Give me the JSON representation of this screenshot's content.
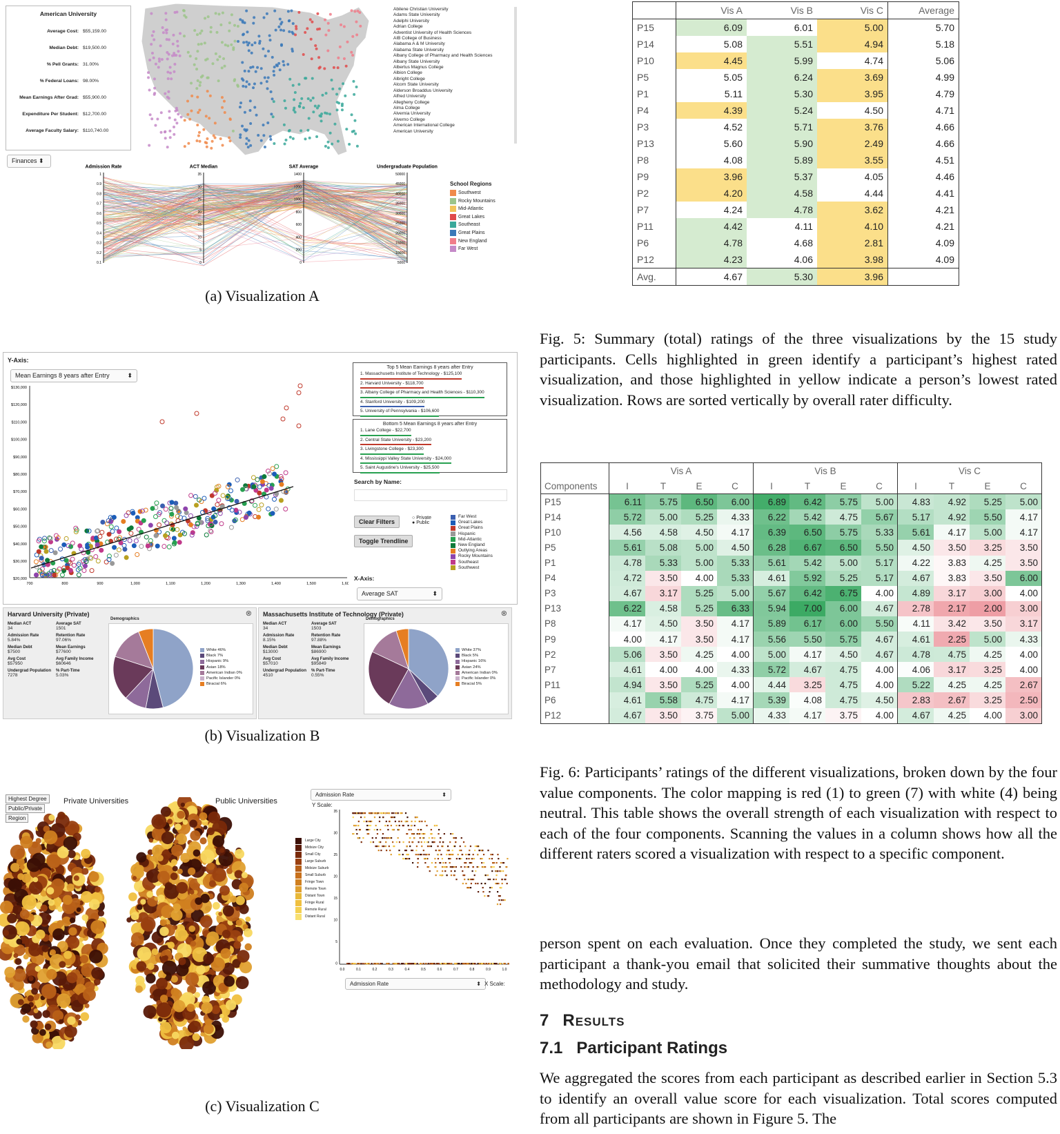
{
  "vis_a": {
    "caption": "(a) Visualization A",
    "info_title": "American University",
    "info_rows": [
      {
        "label": "Average Cost:",
        "value": "$55,159.00"
      },
      {
        "label": "Median Debt:",
        "value": "$19,500.00"
      },
      {
        "label": "% Pell Grants:",
        "value": "31.00%"
      },
      {
        "label": "% Federal Loans:",
        "value": "98.00%"
      },
      {
        "label": "Mean Earnings After Grad:",
        "value": "$55,900.00"
      },
      {
        "label": "Expenditure Per Student:",
        "value": "$12,700.00"
      },
      {
        "label": "Average Faculty Salary:",
        "value": "$110,740.00"
      }
    ],
    "dropdown": "Finances",
    "school_list": [
      "Abilene Christian University",
      "Adams State University",
      "Adelphi University",
      "Adrian College",
      "Adventist University of Health Sciences",
      "AIB College of Business",
      "Alabama A & M University",
      "Alabama State University",
      "Albany College of Pharmacy and Health Sciences",
      "Albany State University",
      "Albertus Magnus College",
      "Albion College",
      "Albright College",
      "Alcorn State University",
      "Alderson Broaddus University",
      "Alfred University",
      "Allegheny College",
      "Alma College",
      "Alvernia University",
      "Alverno College",
      "American International College",
      "American University"
    ],
    "axes": [
      "Admission Rate",
      "ACT Median",
      "SAT Average",
      "Undergraduate Population"
    ],
    "axis_ticks": [
      [
        "1",
        "0.9",
        "0.8",
        "0.7",
        "0.6",
        "0.5",
        "0.4",
        "0.3",
        "0.2",
        "0.1"
      ],
      [
        "35",
        "30",
        "25",
        "20",
        "15",
        "10",
        "5",
        "0"
      ],
      [
        "1400",
        "1200",
        "1000",
        "800",
        "600",
        "400",
        "200",
        "0"
      ],
      [
        "50000",
        "45000",
        "40000",
        "35000",
        "30000",
        "25000",
        "20000",
        "15000",
        "10000",
        "5000"
      ]
    ],
    "legend_title": "School Regions",
    "regions": [
      {
        "name": "Southwest",
        "color": "#f08a4b"
      },
      {
        "name": "Rocky Mountains",
        "color": "#9cc48a"
      },
      {
        "name": "Mid-Atlantic",
        "color": "#f2c45a"
      },
      {
        "name": "Great Lakes",
        "color": "#e04a4a"
      },
      {
        "name": "Southeast",
        "color": "#3aa89a"
      },
      {
        "name": "Great Plains",
        "color": "#3a78b8"
      },
      {
        "name": "New England",
        "color": "#f07d8a"
      },
      {
        "name": "Far West",
        "color": "#c58ac8"
      }
    ]
  },
  "vis_b": {
    "caption": "(b) Visualization B",
    "y_axis_label": "Y-Axis:",
    "y_select": "Mean Earnings 8 years after Entry",
    "y_ticks": [
      "$130,000",
      "$120,000",
      "$110,000",
      "$100,000",
      "$90,000",
      "$80,000",
      "$70,000",
      "$60,000",
      "$50,000",
      "$40,000",
      "$30,000",
      "$20,000"
    ],
    "x_ticks": [
      "700",
      "800",
      "900",
      "1,000",
      "1,100",
      "1,200",
      "1,300",
      "1,400",
      "1,500",
      "1,600"
    ],
    "top5_title": "Top 5 Mean Earnings 8 years after Entry",
    "top5": [
      "1. Massachusetts Institute of Technology - $125,100",
      "2. Harvard University - $118,700",
      "3. Albany College of Pharmacy and Health Sciences - $110,300",
      "4. Stanford University - $109,200",
      "5. University of Pennsylvania - $106,600"
    ],
    "bottom5_title": "Bottom 5 Mean Earnings 8 years after Entry",
    "bottom5": [
      "1. Lane College - $22,700",
      "2. Central State University - $23,200",
      "3. Livingstone College - $23,300",
      "4. Mississippi Valley State University - $24,000",
      "5. Saint Augustine's University - $25,500"
    ],
    "search_label": "Search by Name:",
    "clear_filters": "Clear Filters",
    "toggle_trendline": "Toggle Trendline",
    "private_label": "Private",
    "public_label": "Public",
    "x_axis_label": "X-Axis:",
    "x_select": "Average SAT",
    "regions": [
      {
        "name": "Far West",
        "color": "#3a5fb0"
      },
      {
        "name": "Great Lakes",
        "color": "#1c5db8"
      },
      {
        "name": "Great Plains",
        "color": "#c0392b"
      },
      {
        "name": "Hispanic",
        "color": "#999"
      },
      {
        "name": "Mid-Atlantic",
        "color": "#27a050"
      },
      {
        "name": "New England",
        "color": "#0e7a3a"
      },
      {
        "name": "Outlying Areas",
        "color": "#e67e22"
      },
      {
        "name": "Rocky Mountains",
        "color": "#8e44ad"
      },
      {
        "name": "Southeast",
        "color": "#c03a8a"
      },
      {
        "name": "Southwest",
        "color": "#b8a020"
      }
    ],
    "cards": [
      {
        "title": "Harvard University (Private)",
        "stats": [
          [
            "Median ACT",
            "34"
          ],
          [
            "Average SAT",
            "1501"
          ],
          [
            "Admission Rate",
            "5.84%"
          ],
          [
            "Retention Rate",
            "97.06%"
          ],
          [
            "Median Debt",
            "$7500"
          ],
          [
            "Mean Earnings",
            "$77600"
          ],
          [
            "Avg Cost",
            "$57950"
          ],
          [
            "Avg Family Income",
            "$60646"
          ],
          [
            "Undergrad Population",
            "7278"
          ],
          [
            "% Part-Time",
            "5.03%"
          ]
        ],
        "demo_label": "Demographics",
        "legend": [
          "White 46%",
          "Black 7%",
          "Hispanic 9%",
          "Asian 18%",
          "American Indian 0%",
          "Pacific Islander 0%",
          "Biracial 6%"
        ]
      },
      {
        "title": "Massachusetts Institute of Technology (Private)",
        "stats": [
          [
            "Median ACT",
            "34"
          ],
          [
            "Average SAT",
            "1503"
          ],
          [
            "Admission Rate",
            "8.15%"
          ],
          [
            "Retention Rate",
            "97.88%"
          ],
          [
            "Median Debt",
            "$13000"
          ],
          [
            "Mean Earnings",
            "$86900"
          ],
          [
            "Avg Cost",
            "$57010"
          ],
          [
            "Avg Family Income",
            "$95849"
          ],
          [
            "Undergrad Population",
            "4510"
          ],
          [
            "% Part-Time",
            "0.55%"
          ]
        ],
        "demo_label": "Demographics",
        "legend": [
          "White 37%",
          "Black 5%",
          "Hispanic 16%",
          "Asian 24%",
          "American Indian 0%",
          "Pacific Islander 0%",
          "Biracial 5%"
        ]
      }
    ]
  },
  "vis_c": {
    "caption": "(c) Visualization C",
    "buttons": [
      "Highest Degree",
      "Public/Private",
      "Region"
    ],
    "private_title": "Private Universities",
    "public_title": "Public Universities",
    "y_select": "Admission Rate",
    "y_scale": "Y Scale:",
    "x_select": "Admission Rate",
    "x_scale": "X Scale:",
    "legend": [
      "Large City",
      "Midsize City",
      "Small City",
      "Large Suburb",
      "Midsize Suburb",
      "Small Suburb",
      "Fringe Town",
      "Remote Town",
      "Distant Town",
      "Fringe Rural",
      "Remote Rural",
      "Distant Rural"
    ],
    "y_ticks": [
      "35",
      "30",
      "25",
      "20",
      "15",
      "10",
      "5",
      "0"
    ],
    "x_ticks": [
      "0.0",
      "0.1",
      "0.2",
      "0.3",
      "0.4",
      "0.5",
      "0.6",
      "0.7",
      "0.8",
      "0.9",
      "1.0"
    ]
  },
  "fig5": {
    "headers": [
      "",
      "Vis A",
      "Vis B",
      "Vis C",
      "Average"
    ],
    "rows": [
      {
        "p": "P15",
        "a": "6.09",
        "b": "6.01",
        "c": "5.00",
        "avg": "5.70",
        "hi": "a",
        "lo": "c"
      },
      {
        "p": "P14",
        "a": "5.08",
        "b": "5.51",
        "c": "4.94",
        "avg": "5.18",
        "hi": "b",
        "lo": "c"
      },
      {
        "p": "P10",
        "a": "4.45",
        "b": "5.99",
        "c": "4.74",
        "avg": "5.06",
        "hi": "b",
        "lo": "a"
      },
      {
        "p": "P5",
        "a": "5.05",
        "b": "6.24",
        "c": "3.69",
        "avg": "4.99",
        "hi": "b",
        "lo": "c"
      },
      {
        "p": "P1",
        "a": "5.11",
        "b": "5.30",
        "c": "3.95",
        "avg": "4.79",
        "hi": "b",
        "lo": "c"
      },
      {
        "p": "P4",
        "a": "4.39",
        "b": "5.24",
        "c": "4.50",
        "avg": "4.71",
        "hi": "b",
        "lo": "a"
      },
      {
        "p": "P3",
        "a": "4.52",
        "b": "5.71",
        "c": "3.76",
        "avg": "4.66",
        "hi": "b",
        "lo": "c"
      },
      {
        "p": "P13",
        "a": "5.60",
        "b": "5.90",
        "c": "2.49",
        "avg": "4.66",
        "hi": "b",
        "lo": "c"
      },
      {
        "p": "P8",
        "a": "4.08",
        "b": "5.89",
        "c": "3.55",
        "avg": "4.51",
        "hi": "b",
        "lo": "c"
      },
      {
        "p": "P9",
        "a": "3.96",
        "b": "5.37",
        "c": "4.05",
        "avg": "4.46",
        "hi": "b",
        "lo": "a"
      },
      {
        "p": "P2",
        "a": "4.20",
        "b": "4.58",
        "c": "4.44",
        "avg": "4.41",
        "hi": "b",
        "lo": "a"
      },
      {
        "p": "P7",
        "a": "4.24",
        "b": "4.78",
        "c": "3.62",
        "avg": "4.21",
        "hi": "b",
        "lo": "c"
      },
      {
        "p": "P11",
        "a": "4.42",
        "b": "4.11",
        "c": "4.10",
        "avg": "4.21",
        "hi": "a",
        "lo": "c"
      },
      {
        "p": "P6",
        "a": "4.78",
        "b": "4.68",
        "c": "2.81",
        "avg": "4.09",
        "hi": "a",
        "lo": "c"
      },
      {
        "p": "P12",
        "a": "4.23",
        "b": "4.06",
        "c": "3.98",
        "avg": "4.09",
        "hi": "a",
        "lo": "c"
      }
    ],
    "avg_row": {
      "p": "Avg.",
      "a": "4.67",
      "b": "5.30",
      "c": "3.96",
      "hi": "b",
      "lo": "c"
    },
    "caption": "Fig. 5: Summary (total) ratings of the three visualizations by the 15 study participants. Cells highlighted in green identify a participant’s highest rated visualization, and those highlighted in yellow indicate a person’s lowest rated visualization. Rows are sorted vertically by overall rater difficulty."
  },
  "fig6": {
    "group_headers": [
      "Vis A",
      "Vis B",
      "Vis C"
    ],
    "first_col": "Components",
    "sub_headers": [
      "I",
      "T",
      "E",
      "C",
      "I",
      "T",
      "E",
      "C",
      "I",
      "T",
      "E",
      "C"
    ],
    "rows": [
      {
        "p": "P15",
        "v": [
          "6.11",
          "5.75",
          "6.50",
          "6.00",
          "6.89",
          "6.42",
          "5.75",
          "5.00",
          "4.83",
          "4.92",
          "5.25",
          "5.00"
        ]
      },
      {
        "p": "P14",
        "v": [
          "5.72",
          "5.00",
          "5.25",
          "4.33",
          "6.22",
          "5.42",
          "4.75",
          "5.67",
          "5.17",
          "4.92",
          "5.50",
          "4.17"
        ]
      },
      {
        "p": "P10",
        "v": [
          "4.56",
          "4.58",
          "4.50",
          "4.17",
          "6.39",
          "6.50",
          "5.75",
          "5.33",
          "5.61",
          "4.17",
          "5.00",
          "4.17"
        ]
      },
      {
        "p": "P5",
        "v": [
          "5.61",
          "5.08",
          "5.00",
          "4.50",
          "6.28",
          "6.67",
          "6.50",
          "5.50",
          "4.50",
          "3.50",
          "3.25",
          "3.50"
        ]
      },
      {
        "p": "P1",
        "v": [
          "4.78",
          "5.33",
          "5.00",
          "5.33",
          "5.61",
          "5.42",
          "5.00",
          "5.17",
          "4.22",
          "3.83",
          "4.25",
          "3.50"
        ]
      },
      {
        "p": "P4",
        "v": [
          "4.72",
          "3.50",
          "4.00",
          "5.33",
          "4.61",
          "5.92",
          "5.25",
          "5.17",
          "4.67",
          "3.83",
          "3.50",
          "6.00"
        ]
      },
      {
        "p": "P3",
        "v": [
          "4.67",
          "3.17",
          "5.25",
          "5.00",
          "5.67",
          "6.42",
          "6.75",
          "4.00",
          "4.89",
          "3.17",
          "3.00",
          "4.00"
        ]
      },
      {
        "p": "P13",
        "v": [
          "6.22",
          "4.58",
          "5.25",
          "6.33",
          "5.94",
          "7.00",
          "6.00",
          "4.67",
          "2.78",
          "2.17",
          "2.00",
          "3.00"
        ]
      },
      {
        "p": "P8",
        "v": [
          "4.17",
          "4.50",
          "3.50",
          "4.17",
          "5.89",
          "6.17",
          "6.00",
          "5.50",
          "4.11",
          "3.42",
          "3.50",
          "3.17"
        ]
      },
      {
        "p": "P9",
        "v": [
          "4.00",
          "4.17",
          "3.50",
          "4.17",
          "5.56",
          "5.50",
          "5.75",
          "4.67",
          "4.61",
          "2.25",
          "5.00",
          "4.33"
        ]
      },
      {
        "p": "P2",
        "v": [
          "5.06",
          "3.50",
          "4.25",
          "4.00",
          "5.00",
          "4.17",
          "4.50",
          "4.67",
          "4.78",
          "4.75",
          "4.25",
          "4.00"
        ]
      },
      {
        "p": "P7",
        "v": [
          "4.61",
          "4.00",
          "4.00",
          "4.33",
          "5.72",
          "4.67",
          "4.75",
          "4.00",
          "4.06",
          "3.17",
          "3.25",
          "4.00"
        ]
      },
      {
        "p": "P11",
        "v": [
          "4.94",
          "3.50",
          "5.25",
          "4.00",
          "4.44",
          "3.25",
          "4.75",
          "4.00",
          "5.22",
          "4.25",
          "4.25",
          "2.67"
        ]
      },
      {
        "p": "P6",
        "v": [
          "4.61",
          "5.58",
          "4.75",
          "4.17",
          "5.39",
          "4.08",
          "4.75",
          "4.50",
          "2.83",
          "2.67",
          "3.25",
          "2.50"
        ]
      },
      {
        "p": "P12",
        "v": [
          "4.67",
          "3.50",
          "3.75",
          "5.00",
          "4.33",
          "4.17",
          "3.75",
          "4.00",
          "4.67",
          "4.25",
          "4.00",
          "3.00"
        ]
      }
    ],
    "caption": "Fig. 6: Participants’ ratings of the different visualizations, broken down by the four value components. The color mapping is red (1) to green (7) with white (4) being neutral. This table shows the overall strength of each visualization with respect to each of the four components. Scanning the values in a column shows how all the different raters scored a visualization with respect to a specific component."
  },
  "body_text": {
    "para1": "person spent on each evaluation. Once they completed the study, we sent each participant a thank-you email that solicited their summative thoughts about the methodology and study.",
    "section_num": "7",
    "section_title": "Results",
    "subsection_num": "7.1",
    "subsection_title": "Participant Ratings",
    "para2": "We aggregated the scores from each participant as described earlier in Section 5.3 to identify an overall value score for each visualization. Total scores computed from all participants are shown in Figure 5. The"
  },
  "colors": {
    "green_hi": "#d5ebd0",
    "yellow_lo": "#fbdf8a",
    "map_land": "#cfcfcf"
  }
}
